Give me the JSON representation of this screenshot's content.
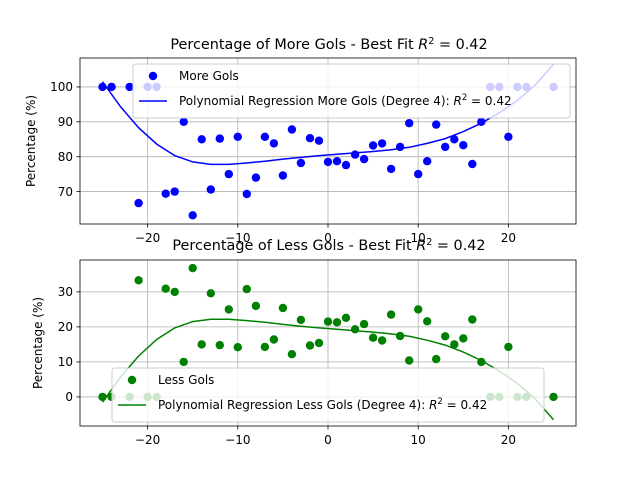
{
  "chart_data": [
    {
      "type": "scatter",
      "title": "Percentage of More Gols - Best Fit R^2 = 0.42",
      "title_prefix": "Percentage of More Gols - Best Fit ",
      "title_r2": "R",
      "title_r2_sup": "2",
      "title_r2_val": " = 0.42",
      "xlabel": "",
      "ylabel": "Percentage (%)",
      "xlim": [
        -27.5,
        27.5
      ],
      "ylim": [
        60.7,
        108.3
      ],
      "xticks": [
        -20,
        -10,
        0,
        10,
        20
      ],
      "xtick_labels": [
        "−20",
        "−10",
        "0",
        "10",
        "20"
      ],
      "yticks": [
        70,
        80,
        90,
        100
      ],
      "ytick_labels": [
        "70",
        "80",
        "90",
        "100"
      ],
      "grid": true,
      "legend_placement": "upper center",
      "color": "#0000ff",
      "series": [
        {
          "name": "More Gols",
          "kind": "points",
          "points": [
            [
              -25,
              100
            ],
            [
              -24,
              100
            ],
            [
              -22,
              100
            ],
            [
              -21,
              66.7
            ],
            [
              -20,
              100
            ],
            [
              -19,
              100
            ],
            [
              -18,
              69.4
            ],
            [
              -17,
              70
            ],
            [
              -16,
              90
            ],
            [
              -15,
              63.2
            ],
            [
              -14,
              85
            ],
            [
              -13,
              70.6
            ],
            [
              -12,
              85.2
            ],
            [
              -11,
              75
            ],
            [
              -10,
              85.7
            ],
            [
              -9,
              69.3
            ],
            [
              -8,
              74
            ],
            [
              -7,
              85.7
            ],
            [
              -6,
              83.8
            ],
            [
              -5,
              74.6
            ],
            [
              -4,
              87.8
            ],
            [
              -3,
              78.2
            ],
            [
              -2,
              85.3
            ],
            [
              -1,
              84.6
            ],
            [
              0,
              78.5
            ],
            [
              1,
              78.7
            ],
            [
              2,
              77.6
            ],
            [
              3,
              80.6
            ],
            [
              4,
              79.3
            ],
            [
              5,
              83.2
            ],
            [
              6,
              83.8
            ],
            [
              7,
              76.5
            ],
            [
              8,
              82.8
            ],
            [
              9,
              89.6
            ],
            [
              10,
              75
            ],
            [
              11,
              78.7
            ],
            [
              12,
              89.2
            ],
            [
              13,
              82.8
            ],
            [
              14,
              85
            ],
            [
              15,
              83.3
            ],
            [
              16,
              77.9
            ],
            [
              17,
              90
            ],
            [
              18,
              100
            ],
            [
              19,
              100
            ],
            [
              20,
              85.7
            ],
            [
              21,
              100
            ],
            [
              22,
              100
            ],
            [
              25,
              100
            ]
          ]
        },
        {
          "name": "Polynomial Regression More Gols (Degree 4): R^2 = 0.42",
          "label_prefix": "Polynomial Regression More Gols (Degree 4): ",
          "label_r2_val": " = 0.42",
          "kind": "line",
          "points": [
            [
              -25,
              101.5
            ],
            [
              -23,
              94.3
            ],
            [
              -21,
              88.3
            ],
            [
              -19,
              83.6
            ],
            [
              -17,
              80.3
            ],
            [
              -15,
              78.5
            ],
            [
              -13,
              77.8
            ],
            [
              -11,
              77.8
            ],
            [
              -9,
              78.2
            ],
            [
              -7,
              78.7
            ],
            [
              -5,
              79.3
            ],
            [
              -3,
              79.8
            ],
            [
              -1,
              80.3
            ],
            [
              1,
              80.7
            ],
            [
              3,
              81.1
            ],
            [
              5,
              81.5
            ],
            [
              7,
              82
            ],
            [
              9,
              82.7
            ],
            [
              11,
              83.8
            ],
            [
              13,
              85.2
            ],
            [
              15,
              87.2
            ],
            [
              17,
              89.6
            ],
            [
              19,
              92.6
            ],
            [
              21,
              96.1
            ],
            [
              23,
              100.6
            ],
            [
              25,
              106.5
            ]
          ]
        }
      ]
    },
    {
      "type": "scatter",
      "title": "Percentage of Less Gols - Best Fit R^2 = 0.42",
      "title_prefix": "Percentage of Less Gols - Best Fit ",
      "title_r2": "R",
      "title_r2_sup": "2",
      "title_r2_val": " = 0.42",
      "xlabel": "",
      "ylabel": "Percentage (%)",
      "xlim": [
        -27.5,
        27.5
      ],
      "ylim": [
        -8.3,
        39.1
      ],
      "xticks": [
        -20,
        -10,
        0,
        10,
        20
      ],
      "xtick_labels": [
        "−20",
        "−10",
        "0",
        "10",
        "20"
      ],
      "yticks": [
        0,
        10,
        20,
        30
      ],
      "ytick_labels": [
        "0",
        "10",
        "20",
        "30"
      ],
      "grid": true,
      "legend_placement": "lower center",
      "color": "#008000",
      "series": [
        {
          "name": "Less Gols",
          "kind": "points",
          "points": [
            [
              -25,
              0
            ],
            [
              -24,
              0
            ],
            [
              -22,
              0
            ],
            [
              -21,
              33.3
            ],
            [
              -20,
              0
            ],
            [
              -19,
              0
            ],
            [
              -18,
              30.9
            ],
            [
              -17,
              30
            ],
            [
              -16,
              10
            ],
            [
              -15,
              36.8
            ],
            [
              -14,
              15
            ],
            [
              -13,
              29.6
            ],
            [
              -12,
              14.8
            ],
            [
              -11,
              25
            ],
            [
              -10,
              14.2
            ],
            [
              -9,
              30.8
            ],
            [
              -8,
              26
            ],
            [
              -7,
              14.3
            ],
            [
              -6,
              16.4
            ],
            [
              -5,
              25.4
            ],
            [
              -4,
              12.2
            ],
            [
              -3,
              22
            ],
            [
              -2,
              14.7
            ],
            [
              -1,
              15.4
            ],
            [
              0,
              21.5
            ],
            [
              1,
              21.3
            ],
            [
              2,
              22.6
            ],
            [
              3,
              19.3
            ],
            [
              4,
              20.8
            ],
            [
              5,
              16.9
            ],
            [
              6,
              16.1
            ],
            [
              7,
              23.5
            ],
            [
              8,
              17.4
            ],
            [
              9,
              10.4
            ],
            [
              10,
              25
            ],
            [
              11,
              21.6
            ],
            [
              12,
              10.8
            ],
            [
              13,
              17.3
            ],
            [
              14,
              15
            ],
            [
              15,
              16.7
            ],
            [
              16,
              22.1
            ],
            [
              17,
              10
            ],
            [
              18,
              0
            ],
            [
              19,
              0
            ],
            [
              20,
              14.3
            ],
            [
              21,
              0
            ],
            [
              22,
              0
            ],
            [
              25,
              0
            ]
          ]
        },
        {
          "name": "Polynomial Regression Less Gols (Degree 4): R^2 = 0.42",
          "label_prefix": "Polynomial Regression Less Gols (Degree 4): ",
          "label_r2_val": " = 0.42",
          "kind": "line",
          "points": [
            [
              -25,
              -1.5
            ],
            [
              -23,
              5.7
            ],
            [
              -21,
              11.7
            ],
            [
              -19,
              16.4
            ],
            [
              -17,
              19.7
            ],
            [
              -15,
              21.5
            ],
            [
              -13,
              22.2
            ],
            [
              -11,
              22.2
            ],
            [
              -9,
              21.8
            ],
            [
              -7,
              21.3
            ],
            [
              -5,
              20.7
            ],
            [
              -3,
              20.2
            ],
            [
              -1,
              19.7
            ],
            [
              1,
              19.3
            ],
            [
              3,
              18.9
            ],
            [
              5,
              18.5
            ],
            [
              7,
              18
            ],
            [
              9,
              17.3
            ],
            [
              11,
              16.2
            ],
            [
              13,
              14.8
            ],
            [
              15,
              12.8
            ],
            [
              17,
              10.4
            ],
            [
              19,
              7.4
            ],
            [
              21,
              3.9
            ],
            [
              23,
              -0.6
            ],
            [
              25,
              -6.5
            ]
          ]
        }
      ]
    }
  ]
}
